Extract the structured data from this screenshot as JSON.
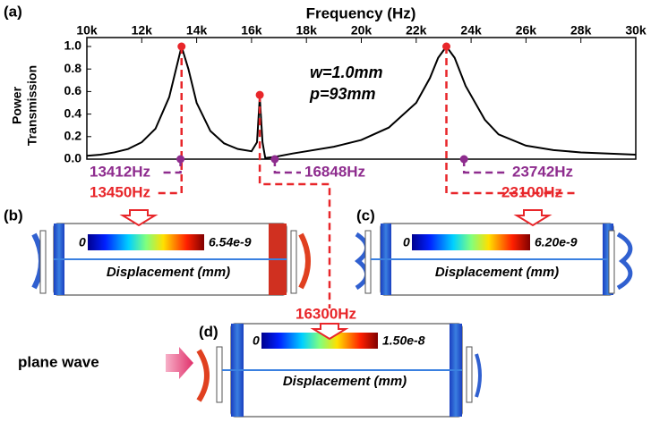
{
  "chart_data": {
    "type": "line",
    "panel_label": "(a)",
    "xlabel": "Frequency (Hz)",
    "ylabel": [
      "Power",
      "Transmission"
    ],
    "xlim": [
      10000,
      30000
    ],
    "xticks": [
      {
        "value": 10000,
        "label": "10k"
      },
      {
        "value": 12000,
        "label": "12k"
      },
      {
        "value": 14000,
        "label": "14k"
      },
      {
        "value": 16000,
        "label": "16k"
      },
      {
        "value": 18000,
        "label": "18k"
      },
      {
        "value": 20000,
        "label": "20k"
      },
      {
        "value": 22000,
        "label": "22k"
      },
      {
        "value": 24000,
        "label": "24k"
      },
      {
        "value": 26000,
        "label": "26k"
      },
      {
        "value": 28000,
        "label": "28k"
      },
      {
        "value": 30000,
        "label": "30k"
      }
    ],
    "ylim": [
      0,
      1
    ],
    "yticks": [
      {
        "value": 0,
        "label": "0.0"
      },
      {
        "value": 0.2,
        "label": "0.2"
      },
      {
        "value": 0.4,
        "label": "0.4"
      },
      {
        "value": 0.6,
        "label": "0.6"
      },
      {
        "value": 0.8,
        "label": "0.8"
      },
      {
        "value": 1,
        "label": "1.0"
      }
    ],
    "color": "#000000",
    "x": [
      10000,
      10500,
      11000,
      11500,
      12000,
      12500,
      13000,
      13200,
      13450,
      13700,
      14000,
      14500,
      15000,
      15500,
      16000,
      16200,
      16300,
      16400,
      16500,
      16848,
      17500,
      18000,
      19000,
      20000,
      21000,
      22000,
      22500,
      22800,
      23100,
      23400,
      23800,
      24500,
      25000,
      26000,
      27000,
      28000,
      29000,
      30000
    ],
    "values": [
      0.03,
      0.04,
      0.06,
      0.09,
      0.15,
      0.27,
      0.55,
      0.75,
      1.0,
      0.8,
      0.5,
      0.25,
      0.14,
      0.09,
      0.07,
      0.15,
      0.55,
      0.15,
      0.01,
      0.02,
      0.05,
      0.07,
      0.11,
      0.17,
      0.28,
      0.5,
      0.72,
      0.9,
      1.0,
      0.9,
      0.65,
      0.35,
      0.22,
      0.12,
      0.08,
      0.06,
      0.05,
      0.04
    ],
    "annotations": [
      "w=1.0mm",
      "p=93mm"
    ],
    "markers": [
      {
        "x": 13450,
        "y": 1.0,
        "label": "13450Hz",
        "color": "#e8262a"
      },
      {
        "x": 16300,
        "y": 0.57,
        "label": "16300Hz",
        "color": "#e8262a"
      },
      {
        "x": 23100,
        "y": 1.0,
        "label": "23100Hz",
        "color": "#e8262a"
      },
      {
        "x": 13412,
        "y": 0,
        "label": "13412Hz",
        "color": "#8e2c8e"
      },
      {
        "x": 16848,
        "y": 0,
        "label": "16848Hz",
        "color": "#8e2c8e"
      },
      {
        "x": 23742,
        "y": 0,
        "label": "23742Hz",
        "color": "#8e2c8e"
      }
    ]
  },
  "panels": [
    {
      "label": "(b)",
      "cbar_min": "0",
      "cbar_max": "6.54e-9",
      "caption": "Displacement (mm)"
    },
    {
      "label": "(c)",
      "cbar_min": "0",
      "cbar_max": "6.20e-9",
      "caption": "Displacement (mm)"
    },
    {
      "label": "(d)",
      "cbar_min": "0",
      "cbar_max": "1.50e-8",
      "caption": "Displacement (mm)"
    }
  ],
  "plane_wave": "plane wave"
}
